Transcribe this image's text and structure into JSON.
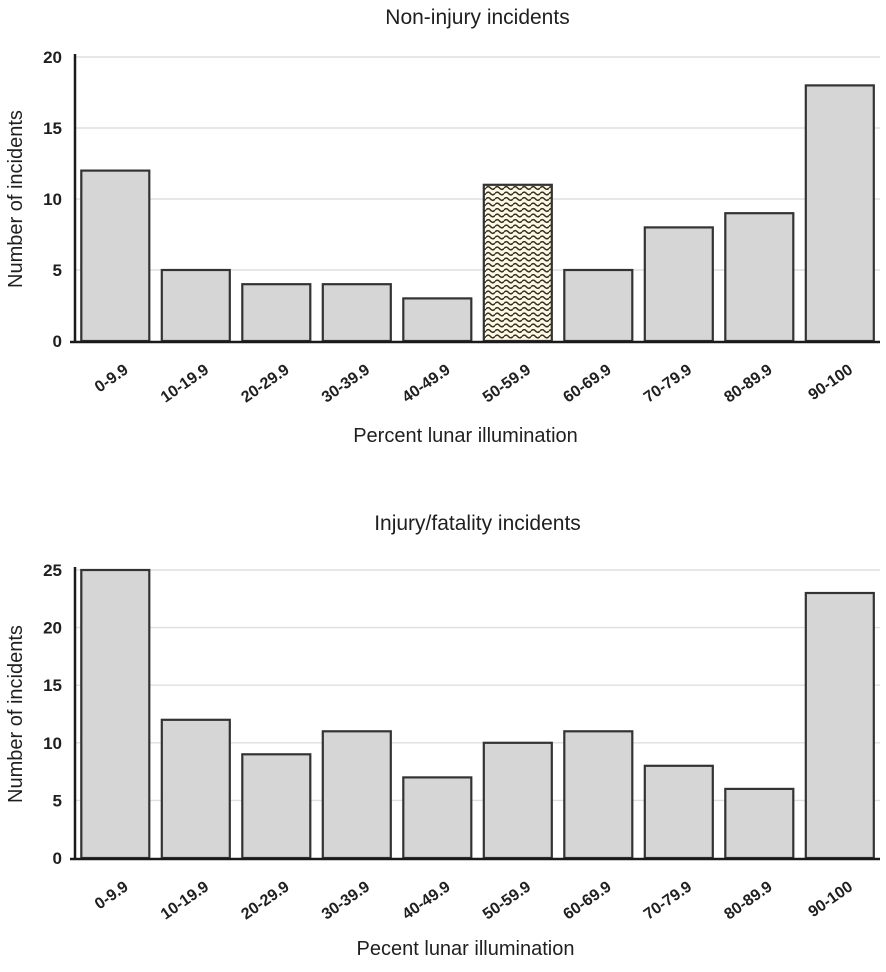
{
  "figure": {
    "background": "#ffffff"
  },
  "colors": {
    "bar_fill": "#d6d6d6",
    "bar_border": "#333333",
    "gridline": "#dfdfdf",
    "axis_line": "#1a1a1a",
    "text": "#1f1f1f",
    "pattern_background": "#fdf8e8",
    "pattern_line": "#35311c"
  },
  "chart_data": [
    {
      "type": "bar",
      "title": "Non-injury incidents",
      "xlabel": "Percent lunar illumination",
      "ylabel": "Number of incidents",
      "categories": [
        "0-9.9",
        "10-19.9",
        "20-29.9",
        "30-39.9",
        "40-49.9",
        "50-59.9",
        "60-69.9",
        "70-79.9",
        "80-89.9",
        "90-100"
      ],
      "values": [
        12,
        5,
        4,
        4,
        3,
        11,
        5,
        8,
        9,
        18
      ],
      "yticks": [
        0,
        5,
        10,
        15,
        20
      ],
      "ylim": [
        0,
        20
      ],
      "grid": true,
      "legend": false,
      "highlight_index": 5,
      "highlight_style": "wave-pattern"
    },
    {
      "type": "bar",
      "title": "Injury/fatality incidents",
      "xlabel": "Pecent lunar illumination",
      "ylabel": "Number of incidents",
      "categories": [
        "0-9.9",
        "10-19.9",
        "20-29.9",
        "30-39.9",
        "40-49.9",
        "50-59.9",
        "60-69.9",
        "70-79.9",
        "80-89.9",
        "90-100"
      ],
      "values": [
        25,
        12,
        9,
        11,
        7,
        10,
        11,
        8,
        6,
        23
      ],
      "yticks": [
        0,
        5,
        10,
        15,
        20,
        25
      ],
      "ylim": [
        0,
        25
      ],
      "grid": true,
      "legend": false,
      "highlight_index": null,
      "highlight_style": null
    }
  ]
}
